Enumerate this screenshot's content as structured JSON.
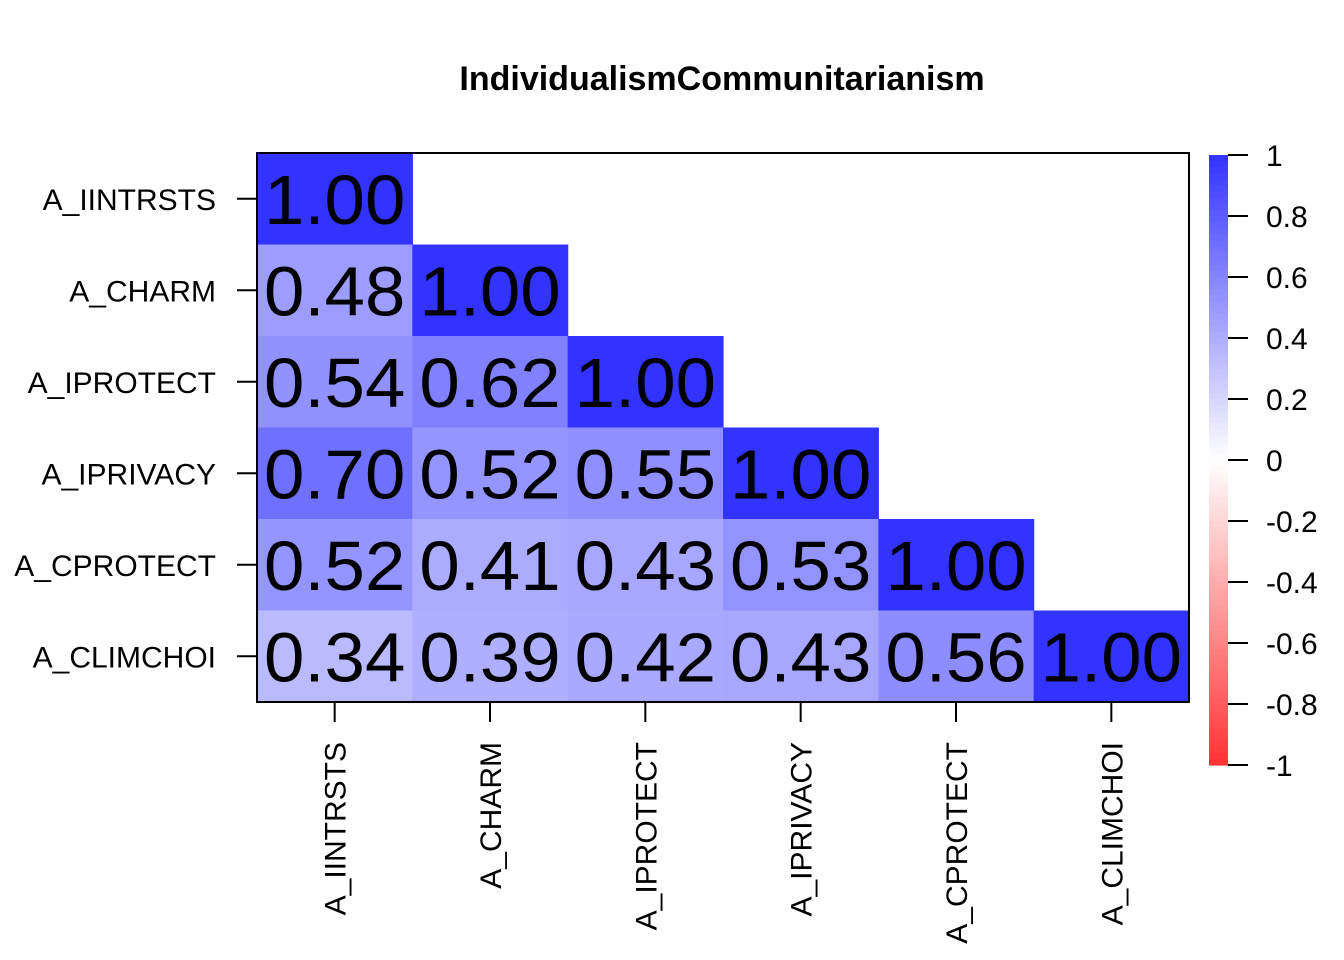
{
  "chart_data": {
    "type": "heatmap",
    "title": "IndividualismCommunitarianism",
    "xlabel": "",
    "ylabel": "",
    "variables": [
      "A_IINTRSTS",
      "A_CHARM",
      "A_IPROTECT",
      "A_IPRIVACY",
      "A_CPROTECT",
      "A_CLIMCHOI"
    ],
    "matrix": [
      [
        1.0,
        null,
        null,
        null,
        null,
        null
      ],
      [
        0.48,
        1.0,
        null,
        null,
        null,
        null
      ],
      [
        0.54,
        0.62,
        1.0,
        null,
        null,
        null
      ],
      [
        0.7,
        0.52,
        0.55,
        1.0,
        null,
        null
      ],
      [
        0.52,
        0.41,
        0.43,
        0.53,
        1.0,
        null
      ],
      [
        0.34,
        0.39,
        0.42,
        0.43,
        0.56,
        1.0
      ]
    ],
    "value_labels": [
      [
        "1.00",
        "",
        "",
        "",
        "",
        ""
      ],
      [
        "0.48",
        "1.00",
        "",
        "",
        "",
        ""
      ],
      [
        "0.54",
        "0.62",
        "1.00",
        "",
        "",
        ""
      ],
      [
        "0.70",
        "0.52",
        "0.55",
        "1.00",
        "",
        ""
      ],
      [
        "0.52",
        "0.41",
        "0.43",
        "0.53",
        "1.00",
        ""
      ],
      [
        "0.34",
        "0.39",
        "0.42",
        "0.43",
        "0.56",
        "1.00"
      ]
    ],
    "shape": "lower-triangle",
    "colorbar": {
      "range": [
        -1,
        1
      ],
      "ticks": [
        1,
        0.8,
        0.6,
        0.4,
        0.2,
        0,
        -0.2,
        -0.4,
        -0.6,
        -0.8,
        -1
      ],
      "tick_labels": [
        "1",
        "0.8",
        "0.6",
        "0.4",
        "0.2",
        "0",
        "-0.2",
        "-0.4",
        "-0.6",
        "-0.8",
        "-1"
      ],
      "colors": {
        "negative": "#ff3333",
        "neutral": "#ffffff",
        "positive": "#3333ff"
      },
      "placement": "right"
    },
    "grid": false
  }
}
